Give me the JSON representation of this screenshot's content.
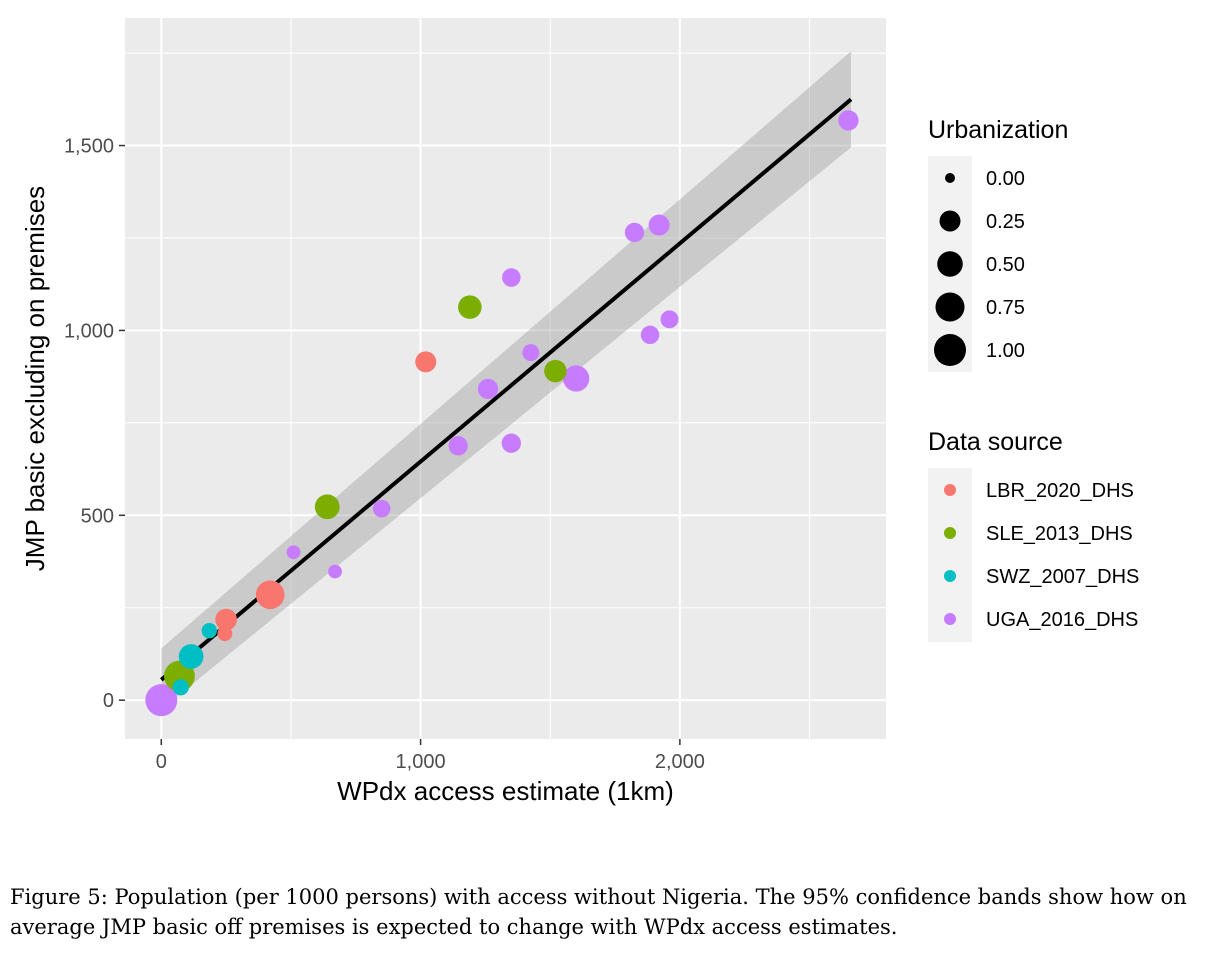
{
  "chart_data": {
    "type": "scatter",
    "xlabel": "WPdx access estimate (1km)",
    "ylabel": "JMP basic excluding on premises",
    "xlim": [
      -140,
      2795
    ],
    "ylim": [
      -105,
      1845
    ],
    "x_ticks": [
      {
        "value": 0,
        "label": "0"
      },
      {
        "value": 1000,
        "label": "1,000"
      },
      {
        "value": 2000,
        "label": "2,000"
      }
    ],
    "y_ticks": [
      {
        "value": 0,
        "label": "0"
      },
      {
        "value": 500,
        "label": "500"
      },
      {
        "value": 1000,
        "label": "1,000"
      },
      {
        "value": 1500,
        "label": "1,500"
      }
    ],
    "grid": true,
    "background": "#ebebeb",
    "fit": {
      "method": "linear",
      "x_range": [
        0,
        2660
      ],
      "start": 55,
      "end": 1625,
      "band_start": [
        -25,
        140
      ],
      "band_end": [
        1495,
        1755
      ],
      "line_color": "#000000",
      "band_color": "#999999"
    },
    "color_legend": {
      "title": "Data source",
      "entries": [
        {
          "name": "LBR_2020_DHS",
          "color": "#F8766D"
        },
        {
          "name": "SLE_2013_DHS",
          "color": "#7CAE00"
        },
        {
          "name": "SWZ_2007_DHS",
          "color": "#00BFC4"
        },
        {
          "name": "UGA_2016_DHS",
          "color": "#C77CFF"
        }
      ]
    },
    "size_legend": {
      "title": "Urbanization",
      "entries": [
        {
          "value": 0.0,
          "label": "0.00"
        },
        {
          "value": 0.25,
          "label": "0.25"
        },
        {
          "value": 0.5,
          "label": "0.50"
        },
        {
          "value": 0.75,
          "label": "0.75"
        },
        {
          "value": 1.0,
          "label": "1.00"
        }
      ]
    },
    "points": [
      {
        "x": 420,
        "y": 285,
        "urbanization": 0.72,
        "source": "LBR_2020_DHS"
      },
      {
        "x": 1020,
        "y": 915,
        "urbanization": 0.25,
        "source": "LBR_2020_DHS"
      },
      {
        "x": 250,
        "y": 218,
        "urbanization": 0.28,
        "source": "LBR_2020_DHS"
      },
      {
        "x": 245,
        "y": 180,
        "urbanization": 0.05,
        "source": "LBR_2020_DHS"
      },
      {
        "x": 1190,
        "y": 1063,
        "urbanization": 0.38,
        "source": "SLE_2013_DHS"
      },
      {
        "x": 1520,
        "y": 890,
        "urbanization": 0.32,
        "source": "SLE_2013_DHS"
      },
      {
        "x": 640,
        "y": 523,
        "urbanization": 0.45,
        "source": "SLE_2013_DHS"
      },
      {
        "x": 70,
        "y": 65,
        "urbanization": 0.9,
        "source": "SLE_2013_DHS"
      },
      {
        "x": 115,
        "y": 118,
        "urbanization": 0.45,
        "source": "SWZ_2007_DHS"
      },
      {
        "x": 185,
        "y": 188,
        "urbanization": 0.06,
        "source": "SWZ_2007_DHS"
      },
      {
        "x": 75,
        "y": 35,
        "urbanization": 0.08,
        "source": "SWZ_2007_DHS"
      },
      {
        "x": 0,
        "y": 0,
        "urbanization": 1.0,
        "source": "UGA_2016_DHS"
      },
      {
        "x": 2650,
        "y": 1568,
        "urbanization": 0.22,
        "source": "UGA_2016_DHS"
      },
      {
        "x": 1920,
        "y": 1285,
        "urbanization": 0.25,
        "source": "UGA_2016_DHS"
      },
      {
        "x": 1825,
        "y": 1265,
        "urbanization": 0.18,
        "source": "UGA_2016_DHS"
      },
      {
        "x": 1350,
        "y": 1143,
        "urbanization": 0.15,
        "source": "UGA_2016_DHS"
      },
      {
        "x": 1960,
        "y": 1030,
        "urbanization": 0.13,
        "source": "UGA_2016_DHS"
      },
      {
        "x": 1885,
        "y": 988,
        "urbanization": 0.15,
        "source": "UGA_2016_DHS"
      },
      {
        "x": 1425,
        "y": 940,
        "urbanization": 0.1,
        "source": "UGA_2016_DHS"
      },
      {
        "x": 1600,
        "y": 870,
        "urbanization": 0.55,
        "source": "UGA_2016_DHS"
      },
      {
        "x": 1260,
        "y": 842,
        "urbanization": 0.22,
        "source": "UGA_2016_DHS"
      },
      {
        "x": 1350,
        "y": 695,
        "urbanization": 0.18,
        "source": "UGA_2016_DHS"
      },
      {
        "x": 1145,
        "y": 688,
        "urbanization": 0.18,
        "source": "UGA_2016_DHS"
      },
      {
        "x": 850,
        "y": 518,
        "urbanization": 0.12,
        "source": "UGA_2016_DHS"
      },
      {
        "x": 510,
        "y": 400,
        "urbanization": 0.03,
        "source": "UGA_2016_DHS"
      },
      {
        "x": 670,
        "y": 348,
        "urbanization": 0.03,
        "source": "UGA_2016_DHS"
      }
    ]
  },
  "caption": "Figure 5: Population (per 1000 persons) with access without Nigeria. The 95% confidence bands show how on average JMP basic off premises is expected to change with WPdx access estimates."
}
